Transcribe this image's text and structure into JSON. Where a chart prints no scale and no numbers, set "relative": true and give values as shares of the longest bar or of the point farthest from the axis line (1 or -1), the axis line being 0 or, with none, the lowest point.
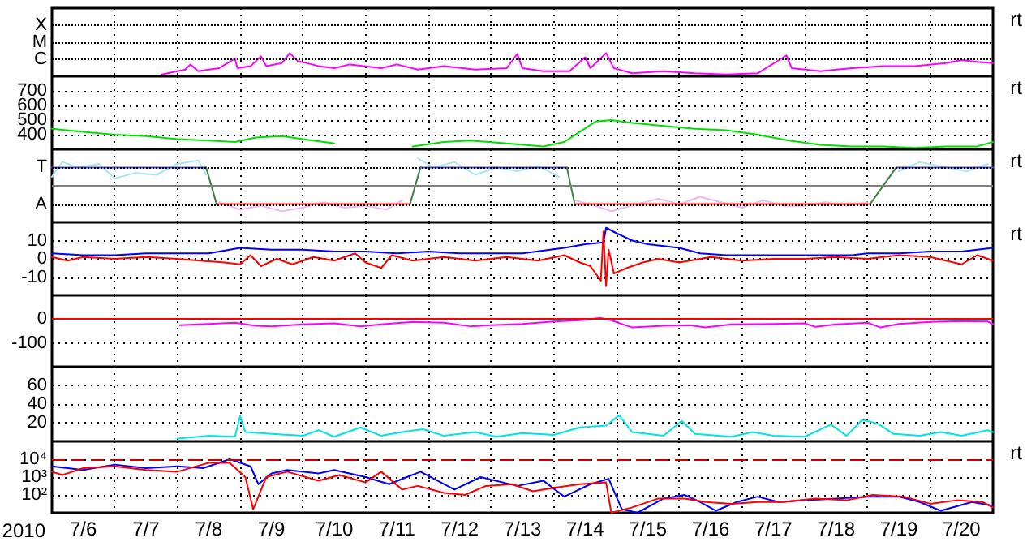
{
  "chart_data": [
    {
      "type": "line",
      "relative": true,
      "ref_lines": [
        {
          "axis": "y",
          "value": 2.2,
          "label": "X",
          "color": "#000000",
          "line_style": "dotted"
        },
        {
          "axis": "y",
          "value": 1.47,
          "label": "M",
          "color": "#000000",
          "line_style": "dotted"
        },
        {
          "axis": "y",
          "value": 0.73,
          "label": "C",
          "color": "#000000",
          "line_style": "dotted"
        }
      ],
      "xlim": [
        "2010-07-06T00:00",
        "2010-07-21T00:00"
      ],
      "xticks": [
        {
          "value": "2010-07-07T00:00",
          "label": null
        },
        {
          "value": "2010-07-08T00:00",
          "label": null
        },
        {
          "value": "2010-07-09T00:00",
          "label": null
        },
        {
          "value": "2010-07-10T00:00",
          "label": null
        },
        {
          "value": "2010-07-11T00:00",
          "label": null
        },
        {
          "value": "2010-07-12T00:00",
          "label": null
        },
        {
          "value": "2010-07-13T00:00",
          "label": null
        },
        {
          "value": "2010-07-14T00:00",
          "label": null
        },
        {
          "value": "2010-07-15T00:00",
          "label": null
        },
        {
          "value": "2010-07-16T00:00",
          "label": null
        },
        {
          "value": "2010-07-17T00:00",
          "label": null
        },
        {
          "value": "2010-07-18T00:00",
          "label": null
        },
        {
          "value": "2010-07-19T00:00",
          "label": null
        },
        {
          "value": "2010-07-20T00:00",
          "label": null
        }
      ],
      "grid": true,
      "tick_labels": "y",
      "annotations": [
        "rt"
      ],
      "series": [
        {
          "color": "#ff00ff",
          "x": [
            "2010-07-07T18:00",
            "2010-07-08T03:00",
            "2010-07-08T05:00",
            "2010-07-08T08:00",
            "2010-07-08T16:00",
            "2010-07-08T22:00",
            "2010-07-08T23:00",
            "2010-07-09T04:00",
            "2010-07-09T08:00",
            "2010-07-09T10:00",
            "2010-07-09T16:00",
            "2010-07-09T19:00",
            "2010-07-09T22:00",
            "2010-07-10T06:00",
            "2010-07-10T12:00",
            "2010-07-10T18:00",
            "2010-07-11T06:00",
            "2010-07-11T12:00",
            "2010-07-11T20:00",
            "2010-07-12T06:00",
            "2010-07-12T18:00",
            "2010-07-13T06:00",
            "2010-07-13T10:00",
            "2010-07-13T12:00",
            "2010-07-13T20:00",
            "2010-07-14T06:00",
            "2010-07-14T12:00",
            "2010-07-14T14:00",
            "2010-07-14T20:00",
            "2010-07-14T23:00",
            "2010-07-15T06:00",
            "2010-07-15T18:00",
            "2010-07-16T06:00",
            "2010-07-16T18:00",
            "2010-07-17T06:00",
            "2010-07-17T17:00",
            "2010-07-17T19:00",
            "2010-07-18T06:00",
            "2010-07-18T18:00",
            "2010-07-19T06:00",
            "2010-07-19T18:00",
            "2010-07-20T06:00",
            "2010-07-20T12:00",
            "2010-07-20T18:00",
            "2010-07-21T00:00"
          ],
          "values": [
            0.08,
            0.29,
            0.51,
            0.22,
            0.35,
            0.76,
            0.35,
            0.44,
            0.86,
            0.44,
            0.57,
            1,
            0.66,
            0.44,
            0.35,
            0.51,
            0.35,
            0.51,
            0.29,
            0.44,
            0.29,
            0.35,
            0.96,
            0.35,
            0.22,
            0.22,
            0.82,
            0.35,
            1,
            0.35,
            0.13,
            0.22,
            0.13,
            0.08,
            0.13,
            0.9,
            0.35,
            0.22,
            0.35,
            0.44,
            0.44,
            0.57,
            0.7,
            0.62,
            0.57
          ]
        }
      ]
    },
    {
      "type": "line",
      "ylim": [
        300,
        800
      ],
      "yticks": [
        400,
        500,
        600,
        700
      ],
      "xlim": [
        "2010-07-06T00:00",
        "2010-07-21T00:00"
      ],
      "xticks": [
        {
          "value": "2010-07-07T00:00",
          "label": null
        },
        {
          "value": "2010-07-08T00:00",
          "label": null
        },
        {
          "value": "2010-07-09T00:00",
          "label": null
        },
        {
          "value": "2010-07-10T00:00",
          "label": null
        },
        {
          "value": "2010-07-11T00:00",
          "label": null
        },
        {
          "value": "2010-07-12T00:00",
          "label": null
        },
        {
          "value": "2010-07-13T00:00",
          "label": null
        },
        {
          "value": "2010-07-14T00:00",
          "label": null
        },
        {
          "value": "2010-07-15T00:00",
          "label": null
        },
        {
          "value": "2010-07-16T00:00",
          "label": null
        },
        {
          "value": "2010-07-17T00:00",
          "label": null
        },
        {
          "value": "2010-07-18T00:00",
          "label": null
        },
        {
          "value": "2010-07-19T00:00",
          "label": null
        },
        {
          "value": "2010-07-20T00:00",
          "label": null
        }
      ],
      "grid": true,
      "tick_labels": "y",
      "annotations": [
        "rt"
      ],
      "series": [
        {
          "color": "#00e000",
          "x": [
            "2010-07-06T00:00",
            "2010-07-06T12:00",
            "2010-07-07T00:00",
            "2010-07-07T12:00",
            "2010-07-08T00:00",
            "2010-07-08T12:00",
            "2010-07-08T22:00",
            "2010-07-09T06:00",
            "2010-07-09T16:00",
            "2010-07-10T00:00",
            "2010-07-10T12:00",
            "2010-07-11T00:00",
            "2010-07-11T18:00",
            "2010-07-12T06:00",
            "2010-07-12T16:00",
            "2010-07-13T06:00",
            "2010-07-13T20:00",
            "2010-07-14T04:00",
            "2010-07-14T10:00",
            "2010-07-14T16:00",
            "2010-07-14T22:00",
            "2010-07-15T06:00",
            "2010-07-15T18:00",
            "2010-07-16T06:00",
            "2010-07-16T18:00",
            "2010-07-17T06:00",
            "2010-07-17T18:00",
            "2010-07-18T06:00",
            "2010-07-18T18:00",
            "2010-07-19T06:00",
            "2010-07-19T18:00",
            "2010-07-20T06:00",
            "2010-07-20T18:00",
            "2010-07-21T00:00"
          ],
          "values": [
            440,
            420,
            400,
            390,
            370,
            360,
            350,
            380,
            390,
            370,
            340,
            null,
            320,
            350,
            360,
            340,
            320,
            350,
            420,
            490,
            500,
            480,
            460,
            440,
            430,
            400,
            360,
            330,
            320,
            320,
            310,
            320,
            320,
            350
          ]
        }
      ]
    },
    {
      "type": "line",
      "relative": true,
      "xlim": [
        "2010-07-06T00:00",
        "2010-07-21T00:00"
      ],
      "xticks": [
        {
          "value": "2010-07-07T00:00",
          "label": null
        },
        {
          "value": "2010-07-08T00:00",
          "label": null
        },
        {
          "value": "2010-07-09T00:00",
          "label": null
        },
        {
          "value": "2010-07-10T00:00",
          "label": null
        },
        {
          "value": "2010-07-11T00:00",
          "label": null
        },
        {
          "value": "2010-07-12T00:00",
          "label": null
        },
        {
          "value": "2010-07-13T00:00",
          "label": null
        },
        {
          "value": "2010-07-14T00:00",
          "label": null
        },
        {
          "value": "2010-07-15T00:00",
          "label": null
        },
        {
          "value": "2010-07-16T00:00",
          "label": null
        },
        {
          "value": "2010-07-17T00:00",
          "label": null
        },
        {
          "value": "2010-07-18T00:00",
          "label": null
        },
        {
          "value": "2010-07-19T00:00",
          "label": null
        },
        {
          "value": "2010-07-20T00:00",
          "label": null
        }
      ],
      "grid": "x",
      "tick_labels": "y",
      "annotations": [
        "rt"
      ],
      "ref_lines": [
        {
          "axis": "y",
          "value": 0.67,
          "label": "T",
          "color": "#000000",
          "line_style": "dotted"
        },
        {
          "axis": "y",
          "value": -0.67,
          "label": "A",
          "color": "#000000",
          "line_style": "dotted"
        }
      ],
      "series": [
        {
          "color": "#a8e4f4",
          "x": [
            "2010-07-06T00:00",
            "2010-07-06T04:00",
            "2010-07-06T10:00",
            "2010-07-06T18:00",
            "2010-07-07T00:00",
            "2010-07-07T08:00",
            "2010-07-07T16:00",
            "2010-07-08T00:00",
            "2010-07-08T08:00",
            "2010-07-08T11:00",
            "2010-07-08T12:00",
            "2010-07-11T20:00",
            "2010-07-12T02:00",
            "2010-07-12T10:00",
            "2010-07-12T18:00",
            "2010-07-13T02:00",
            "2010-07-13T10:00",
            "2010-07-13T18:00",
            "2010-07-14T02:00",
            "2010-07-14T06:00",
            "2010-07-19T12:00",
            "2010-07-19T20:00",
            "2010-07-20T06:00",
            "2010-07-20T14:00",
            "2010-07-20T22:00"
          ],
          "values": [
            0.33,
            0.87,
            0.67,
            0.8,
            0.27,
            0.47,
            0.4,
            0.8,
            0.93,
            0.4,
            null,
            1,
            0.67,
            0.87,
            0.4,
            0.67,
            0.53,
            0.73,
            0.33,
            null,
            0.53,
            0.87,
            0.67,
            0.53,
            0.8
          ]
        },
        {
          "color": "#f4b4f0",
          "x": [
            "2010-07-08T16:00",
            "2010-07-09T00:00",
            "2010-07-09T08:00",
            "2010-07-09T16:00",
            "2010-07-10T00:00",
            "2010-07-10T08:00",
            "2010-07-10T16:00",
            "2010-07-11T00:00",
            "2010-07-11T08:00",
            "2010-07-11T14:00",
            "2010-07-11T18:00",
            "2010-07-14T08:00",
            "2010-07-14T14:00",
            "2010-07-14T22:00",
            "2010-07-15T08:00",
            "2010-07-15T16:00",
            "2010-07-16T00:00",
            "2010-07-16T08:00",
            "2010-07-16T16:00",
            "2010-07-17T00:00",
            "2010-07-17T08:00",
            "2010-07-17T16:00",
            "2010-07-18T00:00",
            "2010-07-18T08:00",
            "2010-07-18T16:00",
            "2010-07-19T00:00"
          ],
          "values": [
            -0.6,
            -0.87,
            -0.73,
            -0.93,
            -0.8,
            -0.6,
            -0.8,
            -0.73,
            -0.87,
            -0.53,
            null,
            -0.53,
            -0.67,
            -0.93,
            -0.67,
            -0.47,
            -0.67,
            -0.4,
            -0.6,
            -0.8,
            -0.53,
            -0.73,
            -0.73,
            -0.6,
            -0.73,
            -0.6
          ]
        },
        {
          "color": "#4848ff",
          "x": [
            "2010-07-06T00:00",
            "2010-07-08T11:00",
            "2010-07-08T12:00",
            "2010-07-11T21:00",
            "2010-07-14T05:00",
            "2010-07-14T06:00",
            "2010-07-19T11:00",
            "2010-07-21T00:00"
          ],
          "values": [
            0.67,
            0.67,
            null,
            0.67,
            0.67,
            null,
            0.67,
            0.67
          ]
        },
        {
          "color": "#ff2020",
          "x": [
            "2010-07-08T15:00",
            "2010-07-11T17:00",
            "2010-07-11T18:00",
            "2010-07-14T08:00",
            "2010-07-19T01:00"
          ],
          "values": [
            -0.67,
            -0.67,
            null,
            -0.67,
            -0.67
          ]
        },
        {
          "color": "#408040",
          "x": [
            "2010-07-08T11:00",
            "2010-07-08T15:00",
            "2010-07-08T16:00",
            "2010-07-11T17:00",
            "2010-07-11T21:00",
            "2010-07-11T22:00",
            "2010-07-14T05:00",
            "2010-07-14T08:00",
            "2010-07-14T09:00",
            "2010-07-19T01:00",
            "2010-07-19T11:00"
          ],
          "values": [
            0.67,
            -0.67,
            null,
            -0.67,
            0.67,
            null,
            0.67,
            -0.67,
            null,
            -0.67,
            0.67
          ]
        }
      ]
    },
    {
      "type": "line",
      "ylim": [
        -20,
        20
      ],
      "yticks": [
        -10,
        0,
        10
      ],
      "xlim": [
        "2010-07-06T00:00",
        "2010-07-21T00:00"
      ],
      "xticks": [
        {
          "value": "2010-07-07T00:00",
          "label": null
        },
        {
          "value": "2010-07-08T00:00",
          "label": null
        },
        {
          "value": "2010-07-09T00:00",
          "label": null
        },
        {
          "value": "2010-07-10T00:00",
          "label": null
        },
        {
          "value": "2010-07-11T00:00",
          "label": null
        },
        {
          "value": "2010-07-12T00:00",
          "label": null
        },
        {
          "value": "2010-07-13T00:00",
          "label": null
        },
        {
          "value": "2010-07-14T00:00",
          "label": null
        },
        {
          "value": "2010-07-15T00:00",
          "label": null
        },
        {
          "value": "2010-07-16T00:00",
          "label": null
        },
        {
          "value": "2010-07-17T00:00",
          "label": null
        },
        {
          "value": "2010-07-18T00:00",
          "label": null
        },
        {
          "value": "2010-07-19T00:00",
          "label": null
        },
        {
          "value": "2010-07-20T00:00",
          "label": null
        }
      ],
      "grid": true,
      "tick_labels": "y",
      "annotations": [
        "rt"
      ],
      "series": [
        {
          "color": "#0000ff",
          "x": [
            "2010-07-06T00:00",
            "2010-07-06T12:00",
            "2010-07-07T00:00",
            "2010-07-07T12:00",
            "2010-07-08T00:00",
            "2010-07-08T12:00",
            "2010-07-08T20:00",
            "2010-07-09T00:00",
            "2010-07-09T12:00",
            "2010-07-10T00:00",
            "2010-07-10T12:00",
            "2010-07-11T00:00",
            "2010-07-11T12:00",
            "2010-07-12T00:00",
            "2010-07-12T12:00",
            "2010-07-13T00:00",
            "2010-07-13T12:00",
            "2010-07-14T04:00",
            "2010-07-14T12:00",
            "2010-07-14T19:00",
            "2010-07-14T20:00",
            "2010-07-15T00:00",
            "2010-07-15T06:00",
            "2010-07-15T12:00",
            "2010-07-16T00:00",
            "2010-07-16T08:00",
            "2010-07-16T18:00",
            "2010-07-17T06:00",
            "2010-07-17T18:00",
            "2010-07-18T06:00",
            "2010-07-18T18:00",
            "2010-07-19T00:00",
            "2010-07-19T12:00",
            "2010-07-20T00:00",
            "2010-07-20T12:00",
            "2010-07-20T18:00",
            "2010-07-21T00:00"
          ],
          "values": [
            3,
            2,
            2,
            3,
            3,
            3,
            5,
            6,
            5,
            5,
            4,
            4,
            3,
            4,
            3,
            3,
            3,
            6,
            8,
            9,
            17,
            14,
            10,
            8,
            6,
            3,
            2,
            2,
            2,
            2,
            2,
            3,
            3,
            4,
            4,
            5,
            6
          ]
        },
        {
          "color": "#ff0000",
          "x": [
            "2010-07-06T00:00",
            "2010-07-06T06:00",
            "2010-07-06T12:00",
            "2010-07-07T00:00",
            "2010-07-07T12:00",
            "2010-07-08T00:00",
            "2010-07-08T18:00",
            "2010-07-09T00:00",
            "2010-07-09T04:00",
            "2010-07-09T08:00",
            "2010-07-09T14:00",
            "2010-07-09T20:00",
            "2010-07-10T04:00",
            "2010-07-10T12:00",
            "2010-07-10T20:00",
            "2010-07-11T00:00",
            "2010-07-11T06:00",
            "2010-07-11T10:00",
            "2010-07-11T18:00",
            "2010-07-12T06:00",
            "2010-07-12T18:00",
            "2010-07-13T06:00",
            "2010-07-13T18:00",
            "2010-07-14T04:00",
            "2010-07-14T10:00",
            "2010-07-14T14:00",
            "2010-07-14T18:00",
            "2010-07-14T19:00",
            "2010-07-14T20:00",
            "2010-07-14T21:00",
            "2010-07-14T23:00",
            "2010-07-15T04:00",
            "2010-07-15T10:00",
            "2010-07-15T16:00",
            "2010-07-16T00:00",
            "2010-07-16T12:00",
            "2010-07-17T00:00",
            "2010-07-17T12:00",
            "2010-07-18T00:00",
            "2010-07-18T12:00",
            "2010-07-19T00:00",
            "2010-07-19T12:00",
            "2010-07-20T00:00",
            "2010-07-20T12:00",
            "2010-07-20T18:00",
            "2010-07-21T00:00"
          ],
          "values": [
            1,
            -1,
            1,
            0,
            1,
            0,
            -2,
            -3,
            2,
            -4,
            0,
            -3,
            1,
            -1,
            3,
            -2,
            -5,
            2,
            -1,
            1,
            -1,
            1,
            -1,
            2,
            -2,
            -4,
            -12,
            15,
            -15,
            5,
            -8,
            -5,
            -2,
            0,
            -2,
            1,
            -1,
            0,
            0,
            1,
            0,
            2,
            1,
            -3,
            2,
            -1
          ]
        }
      ]
    },
    {
      "type": "line",
      "ylim": [
        -200,
        100
      ],
      "yticks": [
        -100,
        0
      ],
      "xlim": [
        "2010-07-06T00:00",
        "2010-07-21T00:00"
      ],
      "xticks": [
        {
          "value": "2010-07-07T00:00",
          "label": null
        },
        {
          "value": "2010-07-08T00:00",
          "label": null
        },
        {
          "value": "2010-07-09T00:00",
          "label": null
        },
        {
          "value": "2010-07-10T00:00",
          "label": null
        },
        {
          "value": "2010-07-11T00:00",
          "label": null
        },
        {
          "value": "2010-07-12T00:00",
          "label": null
        },
        {
          "value": "2010-07-13T00:00",
          "label": null
        },
        {
          "value": "2010-07-14T00:00",
          "label": null
        },
        {
          "value": "2010-07-15T00:00",
          "label": null
        },
        {
          "value": "2010-07-16T00:00",
          "label": null
        },
        {
          "value": "2010-07-17T00:00",
          "label": null
        },
        {
          "value": "2010-07-18T00:00",
          "label": null
        },
        {
          "value": "2010-07-19T00:00",
          "label": null
        },
        {
          "value": "2010-07-20T00:00",
          "label": null
        }
      ],
      "grid": true,
      "tick_labels": "y",
      "ref_lines": [
        {
          "axis": "y",
          "value": 0,
          "color": "#ff0000"
        }
      ],
      "series": [
        {
          "color": "#ff00ff",
          "x": [
            "2010-07-08T01:00",
            "2010-07-08T12:00",
            "2010-07-08T22:00",
            "2010-07-09T06:00",
            "2010-07-09T12:00",
            "2010-07-10T00:00",
            "2010-07-10T12:00",
            "2010-07-10T22:00",
            "2010-07-11T06:00",
            "2010-07-11T18:00",
            "2010-07-12T06:00",
            "2010-07-12T16:00",
            "2010-07-13T00:00",
            "2010-07-13T12:00",
            "2010-07-14T00:00",
            "2010-07-14T10:00",
            "2010-07-14T18:00",
            "2010-07-14T22:00",
            "2010-07-15T06:00",
            "2010-07-15T18:00",
            "2010-07-16T04:00",
            "2010-07-16T10:00",
            "2010-07-16T20:00",
            "2010-07-17T12:00",
            "2010-07-18T00:00",
            "2010-07-18T04:00",
            "2010-07-18T12:00",
            "2010-07-19T00:00",
            "2010-07-19T05:00",
            "2010-07-19T12:00",
            "2010-07-20T00:00",
            "2010-07-20T12:00",
            "2010-07-20T22:00",
            "2010-07-21T00:00"
          ],
          "values": [
            -25,
            -20,
            -15,
            -28,
            -30,
            -22,
            -18,
            -30,
            -22,
            -12,
            -15,
            -30,
            -25,
            -20,
            -10,
            -5,
            5,
            -5,
            -35,
            -28,
            -25,
            -35,
            -22,
            -20,
            -18,
            -32,
            -22,
            -15,
            -35,
            -20,
            -12,
            -8,
            -10,
            -20
          ]
        }
      ]
    },
    {
      "type": "line",
      "ylim": [
        0,
        80
      ],
      "yticks": [
        20,
        40,
        60
      ],
      "xlim": [
        "2010-07-06T00:00",
        "2010-07-21T00:00"
      ],
      "xticks": [
        {
          "value": "2010-07-07T00:00",
          "label": null
        },
        {
          "value": "2010-07-08T00:00",
          "label": null
        },
        {
          "value": "2010-07-09T00:00",
          "label": null
        },
        {
          "value": "2010-07-10T00:00",
          "label": null
        },
        {
          "value": "2010-07-11T00:00",
          "label": null
        },
        {
          "value": "2010-07-12T00:00",
          "label": null
        },
        {
          "value": "2010-07-13T00:00",
          "label": null
        },
        {
          "value": "2010-07-14T00:00",
          "label": null
        },
        {
          "value": "2010-07-15T00:00",
          "label": null
        },
        {
          "value": "2010-07-16T00:00",
          "label": null
        },
        {
          "value": "2010-07-17T00:00",
          "label": null
        },
        {
          "value": "2010-07-18T00:00",
          "label": null
        },
        {
          "value": "2010-07-19T00:00",
          "label": null
        },
        {
          "value": "2010-07-20T00:00",
          "label": null
        }
      ],
      "grid": true,
      "tick_labels": "y",
      "series": [
        {
          "color": "#00e4e4",
          "x": [
            "2010-07-08T00:00",
            "2010-07-08T12:00",
            "2010-07-08T22:00",
            "2010-07-09T00:00",
            "2010-07-09T02:00",
            "2010-07-09T12:00",
            "2010-07-10T00:00",
            "2010-07-10T06:00",
            "2010-07-10T12:00",
            "2010-07-10T22:00",
            "2010-07-11T06:00",
            "2010-07-11T14:00",
            "2010-07-11T22:00",
            "2010-07-12T06:00",
            "2010-07-12T18:00",
            "2010-07-13T02:00",
            "2010-07-13T12:00",
            "2010-07-14T00:00",
            "2010-07-14T10:00",
            "2010-07-14T20:00",
            "2010-07-15T01:00",
            "2010-07-15T06:00",
            "2010-07-15T18:00",
            "2010-07-16T01:00",
            "2010-07-16T06:00",
            "2010-07-16T20:00",
            "2010-07-17T04:00",
            "2010-07-17T12:00",
            "2010-07-18T00:00",
            "2010-07-18T10:00",
            "2010-07-18T16:00",
            "2010-07-18T22:00",
            "2010-07-19T04:00",
            "2010-07-19T10:00",
            "2010-07-19T20:00",
            "2010-07-20T04:00",
            "2010-07-20T12:00",
            "2010-07-20T22:00",
            "2010-07-21T00:00"
          ],
          "values": [
            3,
            6,
            5,
            27,
            10,
            8,
            6,
            12,
            5,
            15,
            6,
            10,
            13,
            6,
            10,
            5,
            9,
            7,
            15,
            17,
            28,
            10,
            6,
            22,
            8,
            5,
            10,
            6,
            5,
            18,
            6,
            23,
            19,
            8,
            6,
            10,
            6,
            12,
            10
          ]
        }
      ]
    },
    {
      "type": "line",
      "log": "y",
      "ylim": [
        10,
        100000
      ],
      "yticks": [
        {
          "value": 100,
          "label": "10²"
        },
        {
          "value": 1000,
          "label": "10³"
        },
        {
          "value": 10000,
          "label": "10⁴"
        }
      ],
      "xlim": [
        "2010-07-06T00:00",
        "2010-07-21T00:00"
      ],
      "xticks": [
        {
          "value": "2010-07-07T00:00",
          "label": null
        },
        {
          "value": "2010-07-08T00:00",
          "label": null
        },
        {
          "value": "2010-07-09T00:00",
          "label": null
        },
        {
          "value": "2010-07-10T00:00",
          "label": null
        },
        {
          "value": "2010-07-11T00:00",
          "label": null
        },
        {
          "value": "2010-07-12T00:00",
          "label": null
        },
        {
          "value": "2010-07-13T00:00",
          "label": null
        },
        {
          "value": "2010-07-14T00:00",
          "label": null
        },
        {
          "value": "2010-07-15T00:00",
          "label": null
        },
        {
          "value": "2010-07-16T00:00",
          "label": null
        },
        {
          "value": "2010-07-17T00:00",
          "label": null
        },
        {
          "value": "2010-07-18T00:00",
          "label": null
        },
        {
          "value": "2010-07-19T00:00",
          "label": null
        },
        {
          "value": "2010-07-20T00:00",
          "label": null
        },
        {
          "value": "2010-07-06T12:00",
          "label": "7/6"
        },
        {
          "value": "2010-07-07T12:00",
          "label": "7/7"
        },
        {
          "value": "2010-07-08T12:00",
          "label": "7/8"
        },
        {
          "value": "2010-07-09T12:00",
          "label": "7/9"
        },
        {
          "value": "2010-07-10T12:00",
          "label": "7/10"
        },
        {
          "value": "2010-07-11T12:00",
          "label": "7/11"
        },
        {
          "value": "2010-07-12T12:00",
          "label": "7/12"
        },
        {
          "value": "2010-07-13T12:00",
          "label": "7/13"
        },
        {
          "value": "2010-07-14T12:00",
          "label": "7/14"
        },
        {
          "value": "2010-07-15T12:00",
          "label": "7/15"
        },
        {
          "value": "2010-07-16T12:00",
          "label": "7/16"
        },
        {
          "value": "2010-07-17T12:00",
          "label": "7/17"
        },
        {
          "value": "2010-07-18T12:00",
          "label": "7/18"
        },
        {
          "value": "2010-07-19T12:00",
          "label": "7/19"
        },
        {
          "value": "2010-07-20T12:00",
          "label": "7/20"
        }
      ],
      "grid": true,
      "xlabel": "2010",
      "annotations": [
        "rt"
      ],
      "ref_lines": [
        {
          "axis": "y",
          "value": 10000,
          "color": "#cc0000",
          "line_style": "dashed"
        }
      ],
      "series": [
        {
          "color": "#0000ff",
          "x": [
            "2010-07-06T00:00",
            "2010-07-06T12:00",
            "2010-07-07T00:00",
            "2010-07-07T12:00",
            "2010-07-08T00:00",
            "2010-07-08T10:00",
            "2010-07-08T20:00",
            "2010-07-09T04:00",
            "2010-07-09T07:00",
            "2010-07-09T12:00",
            "2010-07-09T18:00",
            "2010-07-10T06:00",
            "2010-07-10T12:00",
            "2010-07-11T00:00",
            "2010-07-11T09:00",
            "2010-07-11T21:00",
            "2010-07-12T10:00",
            "2010-07-12T20:00",
            "2010-07-13T10:00",
            "2010-07-13T20:00",
            "2010-07-14T04:00",
            "2010-07-14T14:00",
            "2010-07-14T21:00",
            "2010-07-15T02:00",
            "2010-07-15T08:00",
            "2010-07-15T18:00",
            "2010-07-16T02:00",
            "2010-07-16T08:00",
            "2010-07-16T14:00",
            "2010-07-16T22:00",
            "2010-07-17T06:00",
            "2010-07-17T14:00",
            "2010-07-18T00:00",
            "2010-07-18T12:00",
            "2010-07-19T00:00",
            "2010-07-19T12:00",
            "2010-07-19T20:00",
            "2010-07-20T04:00",
            "2010-07-20T16:00",
            "2010-07-21T00:00"
          ],
          "values": [
            4000,
            2500,
            5000,
            3200,
            4000,
            3200,
            10000,
            4000,
            400,
            1600,
            2500,
            1600,
            2500,
            1000,
            400,
            2000,
            200,
            1000,
            320,
            630,
            80,
            400,
            800,
            16,
            10,
            63,
            100,
            40,
            13,
            40,
            80,
            40,
            50,
            63,
            80,
            80,
            40,
            13,
            40,
            25
          ]
        },
        {
          "color": "#ff0000",
          "x": [
            "2010-07-06T00:00",
            "2010-07-06T04:00",
            "2010-07-06T12:00",
            "2010-07-07T00:00",
            "2010-07-07T12:00",
            "2010-07-08T00:00",
            "2010-07-08T12:00",
            "2010-07-08T20:00",
            "2010-07-09T02:00",
            "2010-07-09T05:00",
            "2010-07-09T10:00",
            "2010-07-09T18:00",
            "2010-07-10T06:00",
            "2010-07-10T14:00",
            "2010-07-11T00:00",
            "2010-07-11T06:00",
            "2010-07-11T14:00",
            "2010-07-11T20:00",
            "2010-07-12T06:00",
            "2010-07-12T14:00",
            "2010-07-12T22:00",
            "2010-07-13T08:00",
            "2010-07-13T16:00",
            "2010-07-14T00:00",
            "2010-07-14T10:00",
            "2010-07-14T20:00",
            "2010-07-14T22:00",
            "2010-07-15T06:00",
            "2010-07-15T16:00",
            "2010-07-16T02:00",
            "2010-07-16T10:00",
            "2010-07-16T20:00",
            "2010-07-17T06:00",
            "2010-07-17T16:00",
            "2010-07-18T04:00",
            "2010-07-18T16:00",
            "2010-07-19T02:00",
            "2010-07-19T14:00",
            "2010-07-20T00:00",
            "2010-07-20T10:00",
            "2010-07-20T20:00",
            "2010-07-21T00:00"
          ],
          "values": [
            2000,
            1300,
            3200,
            4000,
            2500,
            2000,
            6300,
            6300,
            1000,
            16,
            1000,
            2000,
            630,
            1300,
            500,
            2000,
            200,
            320,
            130,
            100,
            320,
            400,
            160,
            250,
            400,
            500,
            10,
            20,
            63,
            63,
            40,
            32,
            40,
            40,
            63,
            50,
            100,
            80,
            32,
            50,
            40,
            20
          ]
        }
      ]
    }
  ]
}
